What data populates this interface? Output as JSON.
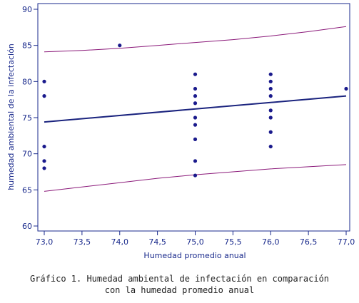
{
  "chart_data": {
    "type": "scatter",
    "xlabel": "Humedad promedio anual",
    "ylabel": "humedad ambiental de la infectación",
    "xlim": [
      73.0,
      77.0
    ],
    "ylim": [
      60,
      90
    ],
    "x_ticks": [
      "73,0",
      "73,5",
      "74,0",
      "74,5",
      "75,0",
      "75,5",
      "76,0",
      "76,5",
      "77,0"
    ],
    "y_ticks": [
      "60",
      "65",
      "70",
      "75",
      "80",
      "85",
      "90"
    ],
    "grid": false,
    "points": [
      {
        "x": 73.0,
        "y": 80
      },
      {
        "x": 73.0,
        "y": 78
      },
      {
        "x": 73.0,
        "y": 71
      },
      {
        "x": 73.0,
        "y": 69
      },
      {
        "x": 73.0,
        "y": 68
      },
      {
        "x": 74.0,
        "y": 85
      },
      {
        "x": 75.0,
        "y": 81
      },
      {
        "x": 75.0,
        "y": 79
      },
      {
        "x": 75.0,
        "y": 78
      },
      {
        "x": 75.0,
        "y": 77
      },
      {
        "x": 75.0,
        "y": 75
      },
      {
        "x": 75.0,
        "y": 74
      },
      {
        "x": 75.0,
        "y": 72
      },
      {
        "x": 75.0,
        "y": 69
      },
      {
        "x": 75.0,
        "y": 67
      },
      {
        "x": 76.0,
        "y": 81
      },
      {
        "x": 76.0,
        "y": 80
      },
      {
        "x": 76.0,
        "y": 79
      },
      {
        "x": 76.0,
        "y": 78
      },
      {
        "x": 76.0,
        "y": 76
      },
      {
        "x": 76.0,
        "y": 75
      },
      {
        "x": 76.0,
        "y": 73
      },
      {
        "x": 76.0,
        "y": 71
      },
      {
        "x": 77.0,
        "y": 79
      }
    ],
    "fit_line": [
      [
        73.0,
        74.4
      ],
      [
        77.0,
        78.0
      ]
    ],
    "upper_band": [
      [
        73.0,
        84.1
      ],
      [
        73.5,
        84.3
      ],
      [
        74.0,
        84.6
      ],
      [
        74.5,
        85.0
      ],
      [
        75.0,
        85.4
      ],
      [
        75.5,
        85.8
      ],
      [
        76.0,
        86.3
      ],
      [
        76.5,
        86.9
      ],
      [
        77.0,
        87.6
      ]
    ],
    "lower_band": [
      [
        73.0,
        64.8
      ],
      [
        73.5,
        65.4
      ],
      [
        74.0,
        66.0
      ],
      [
        74.5,
        66.6
      ],
      [
        75.0,
        67.1
      ],
      [
        75.5,
        67.5
      ],
      [
        76.0,
        67.9
      ],
      [
        76.5,
        68.2
      ],
      [
        77.0,
        68.5
      ]
    ],
    "colors": {
      "points": "#1a1a8c",
      "fit": "#1a237e",
      "band": "#8b1a7a",
      "axis": "#1a2a8c"
    }
  },
  "caption": {
    "line1": "Gráfico 1. Humedad ambiental de infectación en comparación",
    "line2": "con la humedad promedio anual"
  }
}
